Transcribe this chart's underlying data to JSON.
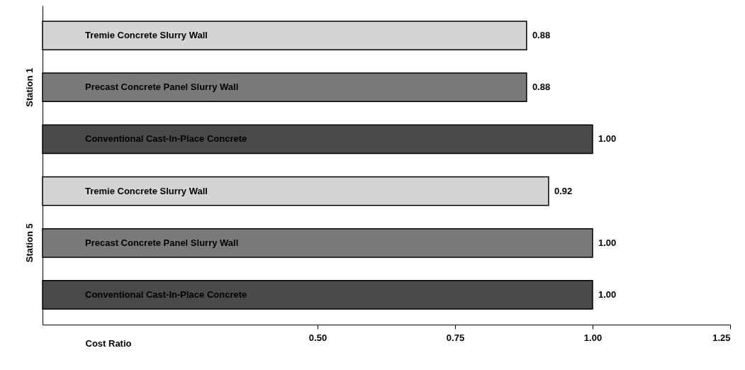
{
  "chart_data": {
    "type": "bar",
    "orientation": "horizontal",
    "xlabel": "Cost Ratio",
    "categories": [
      "Tremie Concrete Slurry Wall",
      "Precast Concrete Panel Slurry Wall",
      "Conventional Cast-In-Place Concrete",
      "Tremie Concrete Slurry Wall",
      "Precast Concrete Panel Slurry Wall",
      "Conventional Cast-In-Place Concrete"
    ],
    "values": [
      0.88,
      0.88,
      1.0,
      0.92,
      1.0,
      1.0
    ],
    "colors": [
      "#d4d4d4",
      "#7a7a7a",
      "#4a4a4a",
      "#d4d4d4",
      "#7a7a7a",
      "#4a4a4a"
    ],
    "xlim": [
      0,
      1.25
    ],
    "xticks": [
      {
        "value": 0.5,
        "label": "0.50"
      },
      {
        "value": 0.75,
        "label": "0.75"
      },
      {
        "value": 1.0,
        "label": "1.00"
      },
      {
        "value": 1.25,
        "label": "1.25"
      }
    ],
    "value_labels": [
      "0.88",
      "0.88",
      "1.00",
      "0.92",
      "1.00",
      "1.00"
    ],
    "grid": false,
    "annotations": [
      "Station 1",
      "Station 5"
    ]
  }
}
